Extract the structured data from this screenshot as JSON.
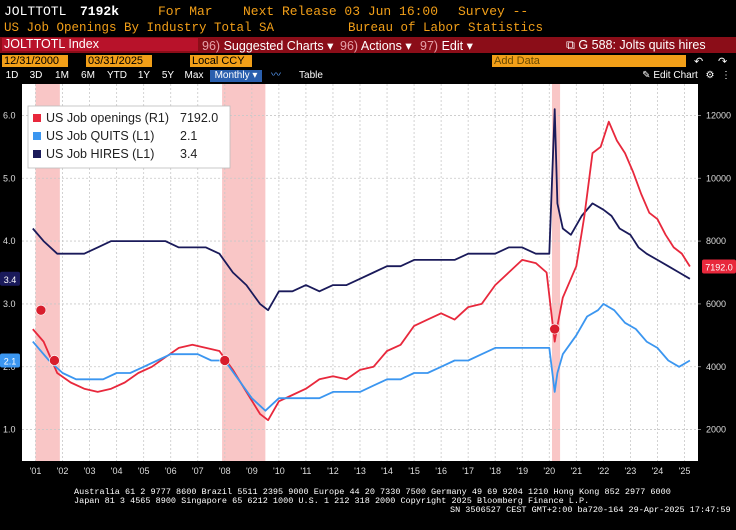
{
  "header": {
    "ticker": "JOLTTOTL",
    "value": "7192k",
    "for_label": "For Mar",
    "next_release": "Next Release 03 Jun 16:00",
    "survey": "Survey --",
    "description": "US Job Openings By Industry Total SA",
    "source": "Bureau of Labor Statistics"
  },
  "menubar": {
    "index_label": "JOLTTOTL Index",
    "item1_num": "96)",
    "item1_label": "Suggested Charts",
    "item2_num": "96)",
    "item2_label": "Actions",
    "item3_num": "97)",
    "item3_label": "Edit",
    "chart_title": "G 588: Jolts quits hires"
  },
  "datebar": {
    "start_date": "12/31/2000",
    "end_date": "03/31/2025",
    "currency": "Local CCY",
    "period": "Monthly",
    "table_label": "Table",
    "add_data_placeholder": "Add Data",
    "edit_chart": "Edit Chart"
  },
  "toolbar": {
    "ranges": [
      "1D",
      "3D",
      "1M",
      "6M",
      "YTD",
      "1Y",
      "5Y",
      "Max"
    ]
  },
  "chart_data": {
    "type": "line",
    "legend": [
      {
        "name": "US Job openings (R1)",
        "last": "7192.0",
        "color": "#e8283c"
      },
      {
        "name": "US Job QUITS (L1)",
        "last": "2.1",
        "color": "#3b96f0"
      },
      {
        "name": "US Job HIRES (L1)",
        "last": "3.4",
        "color": "#1a1a5a"
      }
    ],
    "left_axis": {
      "ticks": [
        "1.0",
        "2.0",
        "3.0",
        "4.0",
        "5.0",
        "6.0"
      ],
      "ylim": [
        0.5,
        6.5
      ]
    },
    "right_axis": {
      "ticks": [
        "2000",
        "4000",
        "6000",
        "8000",
        "10000",
        "12000"
      ],
      "ylim": [
        1000,
        13000
      ]
    },
    "x_labels": [
      "'01",
      "'02",
      "'03",
      "'04",
      "'05",
      "'06",
      "'07",
      "'08",
      "'09",
      "'10",
      "'11",
      "'12",
      "'13",
      "'14",
      "'15",
      "'16",
      "'17",
      "'18",
      "'19",
      "'20",
      "'21",
      "'22",
      "'23",
      "'24",
      "'25"
    ],
    "recessions": [
      [
        2001.0,
        2001.9
      ],
      [
        2007.9,
        2009.5
      ],
      [
        2020.1,
        2020.4
      ]
    ],
    "last_labels": {
      "hires": "3.4",
      "quits": "2.1",
      "openings": "7192.0"
    },
    "openings": {
      "x": [
        2000.9,
        2001.3,
        2001.8,
        2002.3,
        2002.8,
        2003.3,
        2003.8,
        2004.3,
        2004.8,
        2005.3,
        2005.8,
        2006.3,
        2006.8,
        2007.3,
        2007.8,
        2008.3,
        2008.8,
        2009.3,
        2009.6,
        2010.0,
        2010.5,
        2011.0,
        2011.5,
        2012.0,
        2012.5,
        2013.0,
        2013.5,
        2014.0,
        2014.5,
        2015.0,
        2015.5,
        2016.0,
        2016.5,
        2017.0,
        2017.5,
        2018.0,
        2018.5,
        2019.0,
        2019.5,
        2019.9,
        2020.2,
        2020.3,
        2020.5,
        2020.8,
        2021.0,
        2021.3,
        2021.6,
        2021.9,
        2022.2,
        2022.5,
        2022.8,
        2023.1,
        2023.4,
        2023.7,
        2024.0,
        2024.3,
        2024.6,
        2024.9,
        2025.2
      ],
      "y": [
        5200,
        4800,
        3800,
        3500,
        3300,
        3200,
        3300,
        3500,
        3800,
        4000,
        4300,
        4600,
        4700,
        4600,
        4500,
        3900,
        3200,
        2500,
        2300,
        2900,
        3100,
        3300,
        3600,
        3700,
        3600,
        3900,
        4000,
        4500,
        4700,
        5300,
        5500,
        5700,
        5500,
        5900,
        6000,
        6600,
        7000,
        7400,
        7300,
        7000,
        4800,
        5300,
        6200,
        6800,
        7200,
        8800,
        10800,
        11000,
        11800,
        11200,
        10800,
        10200,
        9500,
        8900,
        8700,
        8200,
        7800,
        7600,
        7192
      ]
    },
    "quits": {
      "x": [
        2000.9,
        2001.5,
        2002.0,
        2002.5,
        2003.0,
        2003.5,
        2004.0,
        2004.5,
        2005.0,
        2005.5,
        2006.0,
        2006.5,
        2007.0,
        2007.5,
        2008.0,
        2008.5,
        2009.0,
        2009.5,
        2010.0,
        2010.5,
        2011.0,
        2011.5,
        2012.0,
        2012.5,
        2013.0,
        2013.5,
        2014.0,
        2014.5,
        2015.0,
        2015.5,
        2016.0,
        2016.5,
        2017.0,
        2017.5,
        2018.0,
        2018.5,
        2019.0,
        2019.5,
        2020.0,
        2020.2,
        2020.3,
        2020.5,
        2021.0,
        2021.4,
        2021.8,
        2022.0,
        2022.4,
        2022.8,
        2023.2,
        2023.6,
        2024.0,
        2024.4,
        2024.8,
        2025.2
      ],
      "y": [
        2.4,
        2.1,
        1.9,
        1.8,
        1.8,
        1.8,
        1.9,
        1.9,
        2.0,
        2.1,
        2.2,
        2.2,
        2.2,
        2.1,
        2.1,
        1.8,
        1.5,
        1.3,
        1.5,
        1.5,
        1.5,
        1.5,
        1.6,
        1.6,
        1.6,
        1.7,
        1.8,
        1.8,
        1.9,
        1.9,
        2.0,
        2.1,
        2.1,
        2.2,
        2.3,
        2.3,
        2.3,
        2.3,
        2.3,
        1.6,
        1.9,
        2.2,
        2.5,
        2.8,
        2.9,
        3.0,
        2.9,
        2.7,
        2.6,
        2.4,
        2.3,
        2.1,
        2.0,
        2.1
      ]
    },
    "hires": {
      "x": [
        2000.9,
        2001.3,
        2001.8,
        2002.3,
        2002.8,
        2003.3,
        2003.8,
        2004.3,
        2004.8,
        2005.3,
        2005.8,
        2006.3,
        2006.8,
        2007.3,
        2007.8,
        2008.3,
        2008.8,
        2009.3,
        2009.6,
        2010.0,
        2010.5,
        2011.0,
        2011.5,
        2012.0,
        2012.5,
        2013.0,
        2013.5,
        2014.0,
        2014.5,
        2015.0,
        2015.5,
        2016.0,
        2016.5,
        2017.0,
        2017.5,
        2018.0,
        2018.5,
        2019.0,
        2019.5,
        2020.0,
        2020.2,
        2020.3,
        2020.5,
        2020.8,
        2021.2,
        2021.6,
        2022.0,
        2022.3,
        2022.6,
        2023.0,
        2023.3,
        2023.6,
        2024.0,
        2024.4,
        2024.8,
        2025.2
      ],
      "y": [
        4.2,
        4.0,
        3.8,
        3.8,
        3.8,
        3.9,
        4.0,
        4.0,
        4.0,
        4.0,
        4.0,
        3.9,
        3.9,
        3.9,
        3.8,
        3.5,
        3.3,
        3.0,
        2.9,
        3.2,
        3.2,
        3.3,
        3.2,
        3.3,
        3.3,
        3.4,
        3.5,
        3.6,
        3.6,
        3.7,
        3.7,
        3.7,
        3.7,
        3.8,
        3.8,
        3.8,
        3.9,
        3.9,
        3.8,
        3.8,
        6.1,
        4.6,
        4.2,
        4.1,
        4.4,
        4.6,
        4.5,
        4.4,
        4.2,
        4.1,
        3.9,
        3.8,
        3.7,
        3.6,
        3.5,
        3.4
      ]
    }
  },
  "footer": {
    "line1": "Australia 61 2 9777 8600 Brazil 5511 2395 9000 Europe 44 20 7330 7500 Germany 49 69 9204 1210 Hong Kong 852 2977 6000",
    "line2": "Japan 81 3 4565 8900       Singapore 65 6212 1000       U.S. 1 212 318 2000       Copyright 2025 Bloomberg Finance L.P.",
    "line3": "SN 3506527 CEST GMT+2:00 ba720-164 29-Apr-2025 17:47:59"
  }
}
